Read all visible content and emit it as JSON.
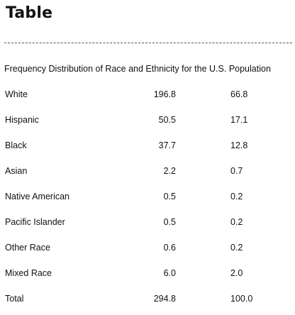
{
  "title": "Table",
  "caption": "Frequency Distribution of Race and Ethnicity for the U.S. Population",
  "rows": [
    {
      "label": "White",
      "count": "196.8",
      "percent": "66.8"
    },
    {
      "label": "Hispanic",
      "count": "50.5",
      "percent": "17.1"
    },
    {
      "label": "Black",
      "count": "37.7",
      "percent": "12.8"
    },
    {
      "label": "Asian",
      "count": "2.2",
      "percent": "0.7"
    },
    {
      "label": "Native American",
      "count": "0.5",
      "percent": "0.2"
    },
    {
      "label": "Pacific Islander",
      "count": "0.5",
      "percent": "0.2"
    },
    {
      "label": "Other Race",
      "count": "0.6",
      "percent": "0.2"
    },
    {
      "label": "Mixed Race",
      "count": "6.0",
      "percent": "2.0"
    },
    {
      "label": "Total",
      "count": "294.8",
      "percent": "100.0"
    }
  ]
}
